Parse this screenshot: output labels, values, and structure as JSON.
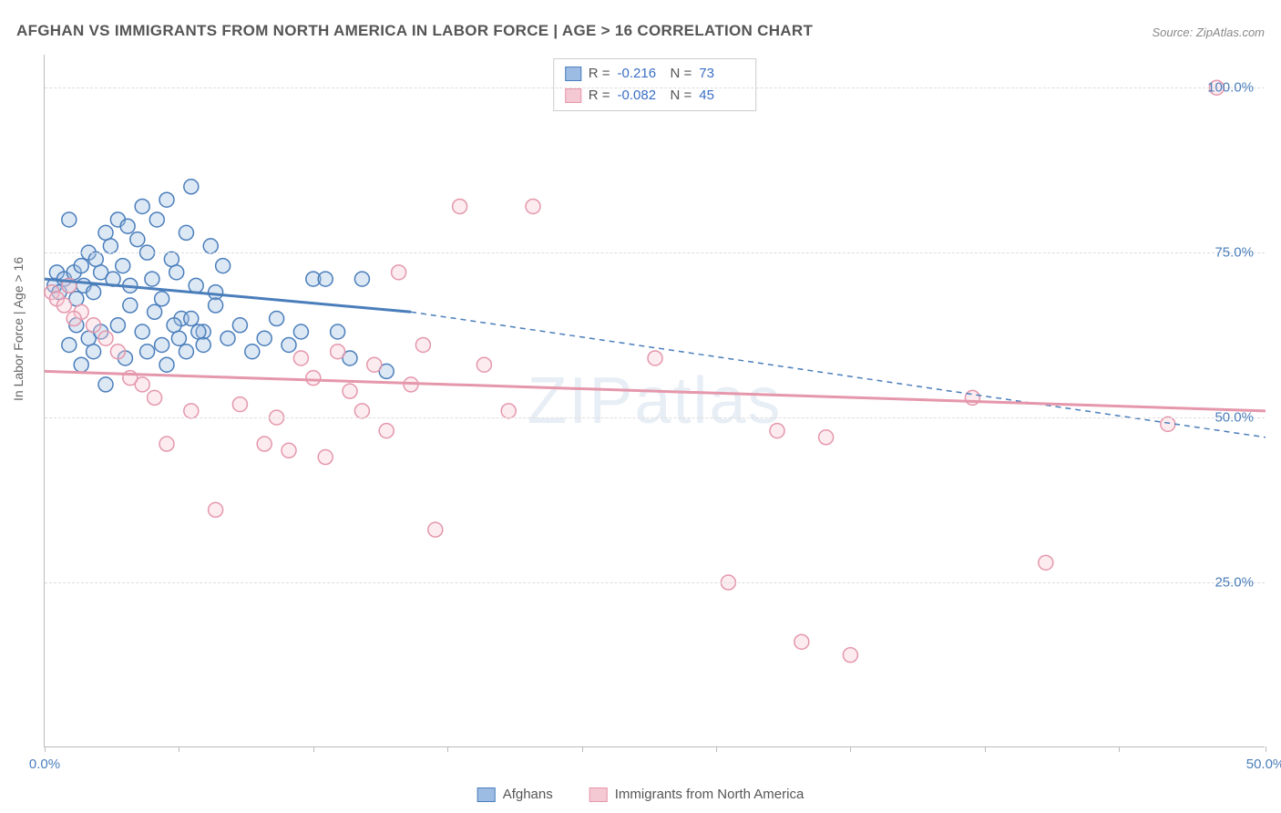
{
  "title": "AFGHAN VS IMMIGRANTS FROM NORTH AMERICA IN LABOR FORCE | AGE > 16 CORRELATION CHART",
  "source": "Source: ZipAtlas.com",
  "y_axis_label": "In Labor Force | Age > 16",
  "watermark": "ZIPatlas",
  "chart": {
    "type": "scatter",
    "x_domain": [
      0,
      50
    ],
    "y_domain": [
      0,
      105
    ],
    "x_ticks": [
      0,
      5.5,
      11,
      16.5,
      22,
      27.5,
      33,
      38.5,
      44,
      50
    ],
    "x_tick_labels": {
      "0": "0.0%",
      "50": "50.0%"
    },
    "y_gridlines": [
      25,
      50,
      75,
      100
    ],
    "y_tick_labels": {
      "25": "25.0%",
      "50": "50.0%",
      "75": "75.0%",
      "100": "100.0%"
    },
    "background_color": "#ffffff",
    "grid_color": "#dddddd",
    "axis_color": "#bbbbbb",
    "marker_radius": 8,
    "marker_stroke_width": 1.5,
    "marker_fill_opacity": 0.35
  },
  "series": [
    {
      "name": "Afghans",
      "color_stroke": "#4a7ebb",
      "color_fill": "#9dbce3",
      "stats": {
        "R": "-0.216",
        "N": "73"
      },
      "regression_solid": {
        "x1": 0,
        "y1": 71,
        "x2": 15,
        "y2": 66
      },
      "regression_dashed": {
        "x1": 15,
        "y1": 66,
        "x2": 50,
        "y2": 47
      },
      "points": [
        [
          0.4,
          70
        ],
        [
          0.5,
          72
        ],
        [
          0.6,
          69
        ],
        [
          0.8,
          71
        ],
        [
          1.0,
          70
        ],
        [
          1.2,
          72
        ],
        [
          1.3,
          68
        ],
        [
          1.5,
          73
        ],
        [
          1.6,
          70
        ],
        [
          1.8,
          75
        ],
        [
          2.0,
          69
        ],
        [
          2.1,
          74
        ],
        [
          2.3,
          72
        ],
        [
          2.5,
          78
        ],
        [
          2.7,
          76
        ],
        [
          2.8,
          71
        ],
        [
          3.0,
          80
        ],
        [
          3.2,
          73
        ],
        [
          3.4,
          79
        ],
        [
          3.5,
          70
        ],
        [
          3.8,
          77
        ],
        [
          4.0,
          82
        ],
        [
          4.2,
          75
        ],
        [
          4.4,
          71
        ],
        [
          4.6,
          80
        ],
        [
          4.8,
          68
        ],
        [
          5.0,
          83
        ],
        [
          5.2,
          74
        ],
        [
          5.4,
          72
        ],
        [
          5.6,
          65
        ],
        [
          5.8,
          78
        ],
        [
          6.0,
          85
        ],
        [
          6.2,
          70
        ],
        [
          6.5,
          63
        ],
        [
          6.8,
          76
        ],
        [
          7.0,
          69
        ],
        [
          7.3,
          73
        ],
        [
          1.0,
          61
        ],
        [
          1.3,
          64
        ],
        [
          1.5,
          58
        ],
        [
          1.8,
          62
        ],
        [
          2.0,
          60
        ],
        [
          2.3,
          63
        ],
        [
          2.5,
          55
        ],
        [
          3.0,
          64
        ],
        [
          3.3,
          59
        ],
        [
          3.5,
          67
        ],
        [
          4.0,
          63
        ],
        [
          4.2,
          60
        ],
        [
          4.5,
          66
        ],
        [
          4.8,
          61
        ],
        [
          5.0,
          58
        ],
        [
          5.3,
          64
        ],
        [
          5.5,
          62
        ],
        [
          5.8,
          60
        ],
        [
          6.0,
          65
        ],
        [
          6.3,
          63
        ],
        [
          6.5,
          61
        ],
        [
          7.0,
          67
        ],
        [
          7.5,
          62
        ],
        [
          8.0,
          64
        ],
        [
          8.5,
          60
        ],
        [
          9.0,
          62
        ],
        [
          9.5,
          65
        ],
        [
          10.0,
          61
        ],
        [
          10.5,
          63
        ],
        [
          11.0,
          71
        ],
        [
          11.5,
          71
        ],
        [
          12.0,
          63
        ],
        [
          12.5,
          59
        ],
        [
          13.0,
          71
        ],
        [
          14.0,
          57
        ],
        [
          1.0,
          80
        ]
      ]
    },
    {
      "name": "Immigrants from North America",
      "color_stroke": "#e597ab",
      "color_fill": "#f5c9d4",
      "stats": {
        "R": "-0.082",
        "N": "45"
      },
      "regression_solid": {
        "x1": 0,
        "y1": 57,
        "x2": 50,
        "y2": 51
      },
      "regression_dashed": null,
      "points": [
        [
          0.3,
          69
        ],
        [
          0.5,
          68
        ],
        [
          0.8,
          67
        ],
        [
          1.0,
          70
        ],
        [
          1.5,
          66
        ],
        [
          2.0,
          64
        ],
        [
          3.0,
          60
        ],
        [
          4.0,
          55
        ],
        [
          5.0,
          46
        ],
        [
          6.0,
          51
        ],
        [
          7.0,
          36
        ],
        [
          8.0,
          52
        ],
        [
          9.0,
          46
        ],
        [
          9.5,
          50
        ],
        [
          10.0,
          45
        ],
        [
          10.5,
          59
        ],
        [
          11.0,
          56
        ],
        [
          11.5,
          44
        ],
        [
          12.0,
          60
        ],
        [
          12.5,
          54
        ],
        [
          13.0,
          51
        ],
        [
          13.5,
          58
        ],
        [
          14.0,
          48
        ],
        [
          14.5,
          72
        ],
        [
          15.0,
          55
        ],
        [
          15.5,
          61
        ],
        [
          16.0,
          33
        ],
        [
          17.0,
          82
        ],
        [
          18.0,
          58
        ],
        [
          19.0,
          51
        ],
        [
          20.0,
          82
        ],
        [
          25.0,
          59
        ],
        [
          28.0,
          25
        ],
        [
          30.0,
          48
        ],
        [
          31.0,
          16
        ],
        [
          32.0,
          47
        ],
        [
          33.0,
          14
        ],
        [
          38.0,
          53
        ],
        [
          41.0,
          28
        ],
        [
          46.0,
          49
        ],
        [
          48.0,
          100
        ],
        [
          1.2,
          65
        ],
        [
          2.5,
          62
        ],
        [
          3.5,
          56
        ],
        [
          4.5,
          53
        ]
      ]
    }
  ],
  "stats_box": {
    "rows": [
      {
        "swatch_fill": "#9dbce3",
        "swatch_stroke": "#4a7ebb",
        "R_label": "R =",
        "R": "-0.216",
        "N_label": "N =",
        "N": "73"
      },
      {
        "swatch_fill": "#f5c9d4",
        "swatch_stroke": "#e597ab",
        "R_label": "R =",
        "R": "-0.082",
        "N_label": "N =",
        "N": "45"
      }
    ]
  },
  "bottom_legend": [
    {
      "swatch_fill": "#9dbce3",
      "swatch_stroke": "#4a7ebb",
      "label": "Afghans"
    },
    {
      "swatch_fill": "#f5c9d4",
      "swatch_stroke": "#e597ab",
      "label": "Immigrants from North America"
    }
  ]
}
